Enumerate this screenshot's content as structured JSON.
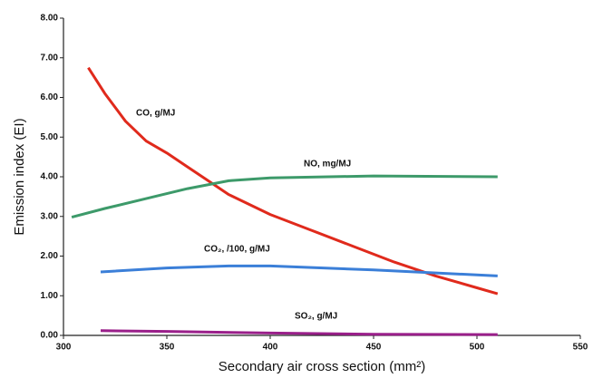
{
  "chart_data": {
    "type": "line",
    "x_label": "Secondary air cross section (mm²)",
    "y_label": "Emission index (EI)",
    "xlim": [
      300,
      550
    ],
    "xticks": [
      300,
      350,
      400,
      450,
      500,
      550
    ],
    "ylim": [
      0,
      8
    ],
    "yticks": [
      {
        "value": 0,
        "label": "0.00"
      },
      {
        "value": 1,
        "label": "1.00"
      },
      {
        "value": 2,
        "label": "2.00"
      },
      {
        "value": 3,
        "label": "3.00"
      },
      {
        "value": 4,
        "label": "4.00"
      },
      {
        "value": 5,
        "label": "5.00"
      },
      {
        "value": 6,
        "label": "6.00"
      },
      {
        "value": 7,
        "label": "7.00"
      },
      {
        "value": 8,
        "label": "8.00"
      }
    ],
    "series": [
      {
        "name": "CO, g/MJ",
        "color": "#e02a1c",
        "x": [
          312,
          320,
          330,
          340,
          350,
          360,
          370,
          380,
          400,
          420,
          440,
          460,
          480,
          500,
          510
        ],
        "values": [
          6.75,
          6.1,
          5.4,
          4.9,
          4.6,
          4.25,
          3.9,
          3.55,
          3.05,
          2.65,
          2.25,
          1.85,
          1.5,
          1.2,
          1.05
        ]
      },
      {
        "name": "NO, mg/MJ",
        "color": "#3d9a6a",
        "x": [
          304,
          320,
          340,
          360,
          380,
          400,
          450,
          510
        ],
        "values": [
          2.98,
          3.2,
          3.45,
          3.7,
          3.9,
          3.97,
          4.02,
          4.0
        ]
      },
      {
        "name": "CO₂, /100, g/MJ",
        "color": "#3b7fd8",
        "x": [
          318,
          350,
          380,
          400,
          450,
          510
        ],
        "values": [
          1.6,
          1.7,
          1.75,
          1.75,
          1.65,
          1.5
        ]
      },
      {
        "name": "SO₂, g/MJ",
        "color": "#9a1f8a",
        "x": [
          318,
          350,
          400,
          450,
          510
        ],
        "values": [
          0.12,
          0.1,
          0.06,
          0.03,
          0.02
        ]
      }
    ]
  }
}
